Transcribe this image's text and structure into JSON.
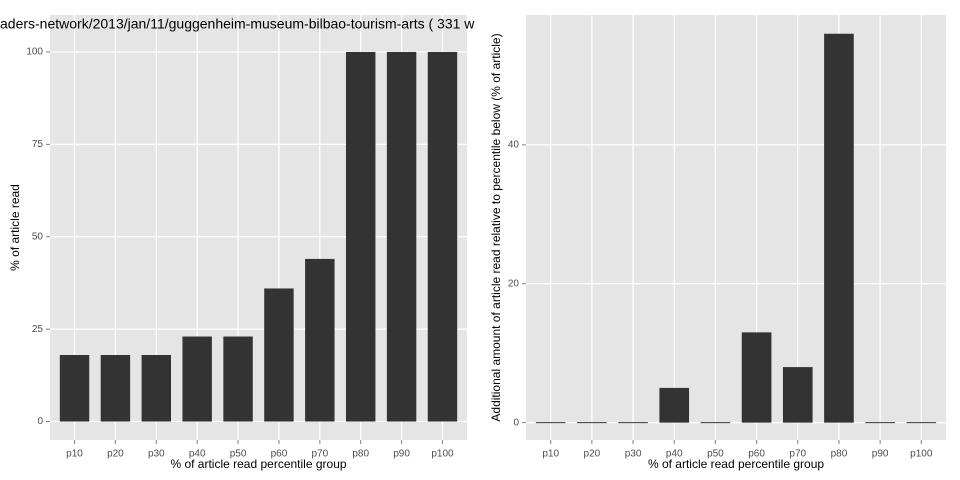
{
  "chart_data": [
    {
      "type": "bar",
      "title": "aders-network/2013/jan/11/guggenheim-museum-bilbao-tourism-arts ( 331 w",
      "x_label": "% of article read percentile group",
      "y_label": "% of article read",
      "categories": [
        "p10",
        "p20",
        "p30",
        "p40",
        "p50",
        "p60",
        "p70",
        "p80",
        "p90",
        "p100"
      ],
      "values": [
        18,
        18,
        18,
        23,
        23,
        36,
        44,
        100,
        100,
        100
      ],
      "color": "#333333",
      "ylim": [
        -5,
        110
      ],
      "yticks": [
        0,
        25,
        50,
        75,
        100
      ],
      "grid": true
    },
    {
      "type": "bar",
      "x_label": "% of article read percentile group",
      "y_label": "Additional amount of article read relative to percentile below (% of article)",
      "categories": [
        "p10",
        "p20",
        "p30",
        "p40",
        "p50",
        "p60",
        "p70",
        "p80",
        "p90",
        "p100"
      ],
      "values": [
        0,
        0,
        0,
        5,
        0,
        13,
        8,
        56,
        0,
        0
      ],
      "color": "#333333",
      "ylim": [
        -2.5,
        58.7
      ],
      "yticks": [
        0,
        20,
        40
      ],
      "grid": true
    }
  ]
}
